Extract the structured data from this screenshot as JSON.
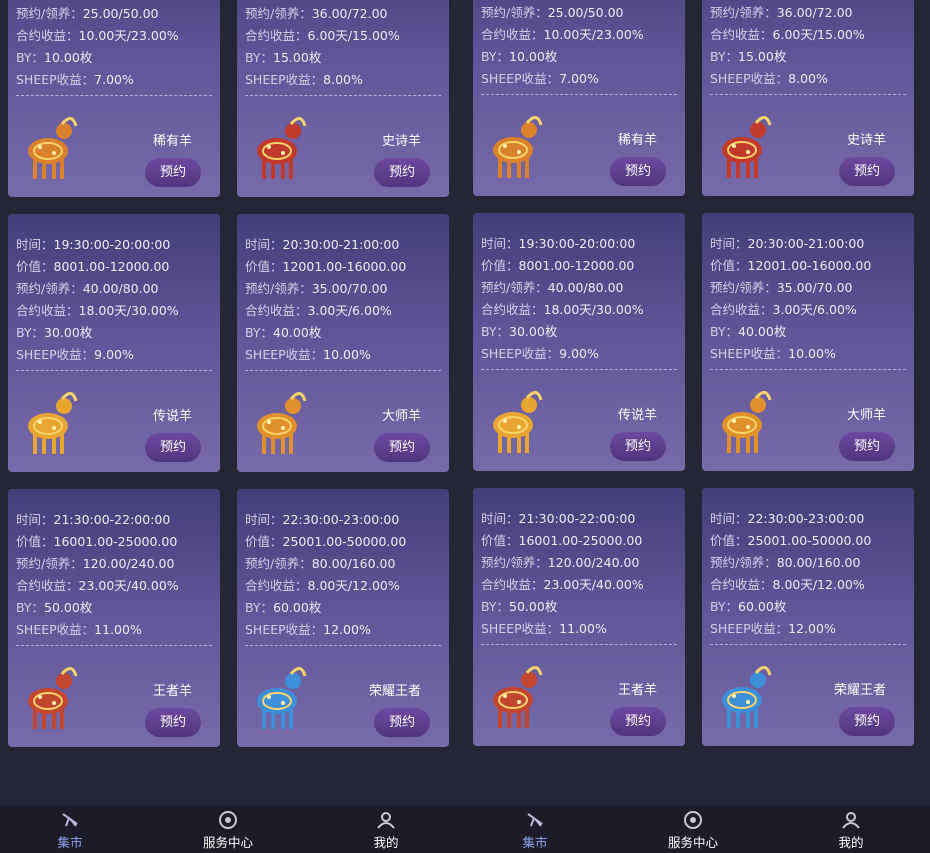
{
  "cards": [
    {
      "lines": [
        {
          "label": "预约/领养：",
          "value": "25.00/50.00"
        },
        {
          "label": "合约收益：",
          "value": "10.00天/23.00%"
        },
        {
          "label": "BY：",
          "value": "10.00枚"
        },
        {
          "label": "SHEEP收益：",
          "value": "7.00%"
        }
      ],
      "name": "稀有羊",
      "button": "预约",
      "tint": "#d9822b"
    },
    {
      "lines": [
        {
          "label": "预约/领养：",
          "value": "36.00/72.00"
        },
        {
          "label": "合约收益：",
          "value": "6.00天/15.00%"
        },
        {
          "label": "BY：",
          "value": "15.00枚"
        },
        {
          "label": "SHEEP收益：",
          "value": "8.00%"
        }
      ],
      "name": "史诗羊",
      "button": "预约",
      "tint": "#c0392b"
    },
    {
      "lines": [
        {
          "label": "时间：",
          "value": "19:30:00-20:00:00"
        },
        {
          "label": "价值：",
          "value": "8001.00-12000.00"
        },
        {
          "label": "预约/领养：",
          "value": "40.00/80.00"
        },
        {
          "label": "合约收益：",
          "value": "18.00天/30.00%"
        },
        {
          "label": "BY：",
          "value": "30.00枚"
        },
        {
          "label": "SHEEP收益：",
          "value": "9.00%"
        }
      ],
      "name": "传说羊",
      "button": "预约",
      "tint": "#e8a531"
    },
    {
      "lines": [
        {
          "label": "时间：",
          "value": "20:30:00-21:00:00"
        },
        {
          "label": "价值：",
          "value": "12001.00-16000.00"
        },
        {
          "label": "预约/领养：",
          "value": "35.00/70.00"
        },
        {
          "label": "合约收益：",
          "value": "3.00天/6.00%"
        },
        {
          "label": "BY：",
          "value": "40.00枚"
        },
        {
          "label": "SHEEP收益：",
          "value": "10.00%"
        }
      ],
      "name": "大师羊",
      "button": "预约",
      "tint": "#e0902a"
    },
    {
      "lines": [
        {
          "label": "时间：",
          "value": "21:30:00-22:00:00"
        },
        {
          "label": "价值：",
          "value": "16001.00-25000.00"
        },
        {
          "label": "预约/领养：",
          "value": "120.00/240.00"
        },
        {
          "label": "合约收益：",
          "value": "23.00天/40.00%"
        },
        {
          "label": "BY：",
          "value": "50.00枚"
        },
        {
          "label": "SHEEP收益：",
          "value": "11.00%"
        }
      ],
      "name": "王者羊",
      "button": "预约",
      "tint": "#c2452e"
    },
    {
      "lines": [
        {
          "label": "时间：",
          "value": "22:30:00-23:00:00"
        },
        {
          "label": "价值：",
          "value": "25001.00-50000.00"
        },
        {
          "label": "预约/领养：",
          "value": "80.00/160.00"
        },
        {
          "label": "合约收益：",
          "value": "8.00天/12.00%"
        },
        {
          "label": "BY：",
          "value": "60.00枚"
        },
        {
          "label": "SHEEP收益：",
          "value": "12.00%"
        }
      ],
      "name": "荣耀王者",
      "button": "预约",
      "tint": "#3d8fd8"
    }
  ],
  "nav": [
    {
      "label": "集市",
      "active": true
    },
    {
      "label": "服务中心",
      "active": false
    },
    {
      "label": "我的",
      "active": false
    }
  ]
}
